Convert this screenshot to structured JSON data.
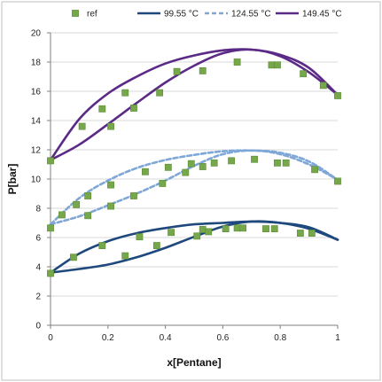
{
  "chart_data": {
    "type": "scatter",
    "xlabel": "x[Pentane]",
    "ylabel": "P[bar]",
    "xlim": [
      0,
      1
    ],
    "ylim": [
      0,
      20
    ],
    "x_ticks": [
      0,
      0.2,
      0.4,
      0.6,
      0.8,
      1
    ],
    "x_tick_labels": [
      "0",
      "0.2",
      "0.4",
      "0.6",
      "0.8",
      "1"
    ],
    "y_ticks": [
      0,
      2,
      4,
      6,
      8,
      10,
      12,
      14,
      16,
      18,
      20
    ],
    "y_tick_labels": [
      "0",
      "2",
      "4",
      "6",
      "8",
      "10",
      "12",
      "14",
      "16",
      "18",
      "20"
    ],
    "grid": "horizontal",
    "legend_position": "top",
    "colors": {
      "ref": "#76a84b",
      "ref_edge": "#5b8a36",
      "t99": "#1f497d",
      "t124": "#7ea6d6",
      "t149": "#5b2a86",
      "grid": "#d9d9d9",
      "frame": "#bfbfbf"
    },
    "series": [
      {
        "name": "ref",
        "kind": "marker",
        "points": [
          [
            0,
            3.55
          ],
          [
            0.08,
            4.65
          ],
          [
            0.18,
            5.45
          ],
          [
            0.26,
            4.75
          ],
          [
            0.31,
            6.05
          ],
          [
            0.37,
            5.45
          ],
          [
            0.42,
            6.35
          ],
          [
            0.51,
            6.1
          ],
          [
            0.53,
            6.55
          ],
          [
            0.55,
            6.4
          ],
          [
            0.61,
            6.6
          ],
          [
            0.65,
            6.65
          ],
          [
            0.67,
            6.65
          ],
          [
            0.75,
            6.6
          ],
          [
            0.78,
            6.6
          ],
          [
            0.87,
            6.3
          ],
          [
            0.91,
            6.3
          ],
          [
            0,
            6.65
          ],
          [
            0.04,
            7.55
          ],
          [
            0.09,
            8.25
          ],
          [
            0.13,
            7.5
          ],
          [
            0.13,
            8.85
          ],
          [
            0.21,
            9.6
          ],
          [
            0.21,
            8.15
          ],
          [
            0.29,
            8.85
          ],
          [
            0.33,
            10.5
          ],
          [
            0.39,
            9.7
          ],
          [
            0.41,
            10.8
          ],
          [
            0.47,
            10.45
          ],
          [
            0.49,
            11.05
          ],
          [
            0.53,
            10.85
          ],
          [
            0.57,
            11.1
          ],
          [
            0.63,
            11.25
          ],
          [
            0.71,
            11.35
          ],
          [
            0.79,
            11.1
          ],
          [
            0.82,
            11.1
          ],
          [
            0.92,
            10.65
          ],
          [
            1,
            9.85
          ],
          [
            0,
            11.25
          ],
          [
            0.11,
            13.6
          ],
          [
            0.18,
            14.8
          ],
          [
            0.21,
            13.6
          ],
          [
            0.26,
            15.9
          ],
          [
            0.29,
            14.85
          ],
          [
            0.38,
            15.9
          ],
          [
            0.44,
            17.35
          ],
          [
            0.53,
            17.4
          ],
          [
            0.65,
            18.0
          ],
          [
            0.77,
            17.8
          ],
          [
            0.79,
            17.8
          ],
          [
            0.88,
            17.2
          ],
          [
            0.95,
            16.4
          ],
          [
            1,
            15.7
          ]
        ]
      },
      {
        "name": "99.55 °C",
        "kind": "envelope",
        "style": "solid",
        "bubble": [
          [
            0,
            3.6
          ],
          [
            0.1,
            4.9
          ],
          [
            0.2,
            5.75
          ],
          [
            0.3,
            6.3
          ],
          [
            0.4,
            6.65
          ],
          [
            0.5,
            6.9
          ],
          [
            0.6,
            7.0
          ],
          [
            0.7,
            7.1
          ],
          [
            0.8,
            7.0
          ],
          [
            0.9,
            6.7
          ],
          [
            1,
            5.85
          ]
        ],
        "dew": [
          [
            0,
            3.6
          ],
          [
            0.1,
            3.85
          ],
          [
            0.2,
            4.15
          ],
          [
            0.3,
            4.65
          ],
          [
            0.4,
            5.3
          ],
          [
            0.5,
            6.05
          ],
          [
            0.6,
            6.75
          ],
          [
            0.7,
            7.1
          ],
          [
            0.8,
            7.0
          ],
          [
            0.9,
            6.6
          ],
          [
            1,
            5.85
          ]
        ]
      },
      {
        "name": "124.55 °C",
        "kind": "envelope",
        "style": "dashed",
        "bubble": [
          [
            0,
            6.9
          ],
          [
            0.1,
            8.7
          ],
          [
            0.2,
            9.9
          ],
          [
            0.3,
            10.75
          ],
          [
            0.4,
            11.3
          ],
          [
            0.5,
            11.65
          ],
          [
            0.6,
            11.9
          ],
          [
            0.7,
            11.95
          ],
          [
            0.8,
            11.8
          ],
          [
            0.9,
            11.2
          ],
          [
            1,
            9.95
          ]
        ],
        "dew": [
          [
            0,
            6.9
          ],
          [
            0.1,
            7.45
          ],
          [
            0.2,
            8.2
          ],
          [
            0.3,
            9.0
          ],
          [
            0.4,
            9.9
          ],
          [
            0.5,
            10.9
          ],
          [
            0.6,
            11.7
          ],
          [
            0.7,
            11.95
          ],
          [
            0.8,
            11.7
          ],
          [
            0.9,
            11.0
          ],
          [
            1,
            9.95
          ]
        ]
      },
      {
        "name": "149.45 °C",
        "kind": "envelope",
        "style": "solid",
        "bubble": [
          [
            0,
            11.3
          ],
          [
            0.1,
            14.1
          ],
          [
            0.2,
            15.85
          ],
          [
            0.3,
            17.0
          ],
          [
            0.4,
            17.9
          ],
          [
            0.5,
            18.45
          ],
          [
            0.6,
            18.8
          ],
          [
            0.7,
            18.85
          ],
          [
            0.8,
            18.5
          ],
          [
            0.9,
            17.6
          ],
          [
            1,
            15.75
          ]
        ],
        "dew": [
          [
            0,
            11.3
          ],
          [
            0.1,
            12.35
          ],
          [
            0.2,
            13.75
          ],
          [
            0.3,
            15.2
          ],
          [
            0.4,
            16.6
          ],
          [
            0.5,
            17.75
          ],
          [
            0.6,
            18.6
          ],
          [
            0.7,
            18.85
          ],
          [
            0.8,
            18.4
          ],
          [
            0.9,
            17.3
          ],
          [
            1,
            15.75
          ]
        ]
      }
    ]
  }
}
